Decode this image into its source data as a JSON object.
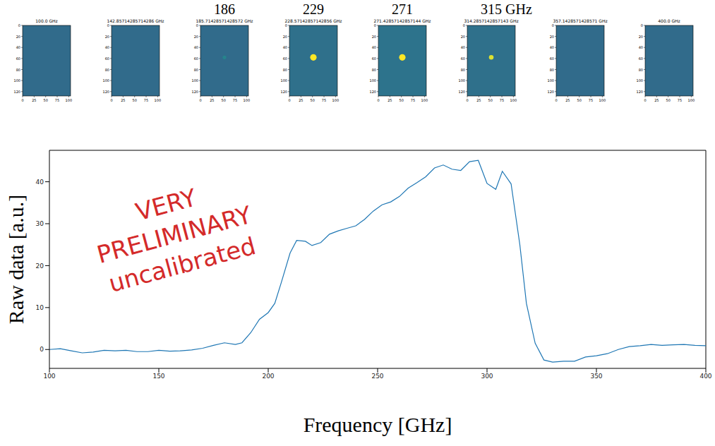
{
  "chart_data": [
    {
      "type": "image",
      "title": "100.0 GHz",
      "xlim": [
        0,
        104
      ],
      "ylim": [
        128,
        0
      ],
      "xticks": [
        0,
        25,
        50,
        75,
        100
      ],
      "yticks": [
        0,
        20,
        40,
        60,
        80,
        100,
        120
      ],
      "clim": [
        0,
        1
      ],
      "background": 0.35,
      "spot": null
    },
    {
      "type": "image",
      "title": "142.85714285714286 GHz",
      "xlim": [
        0,
        104
      ],
      "ylim": [
        128,
        0
      ],
      "xticks": [
        0,
        25,
        50,
        75,
        100
      ],
      "yticks": [
        0,
        20,
        40,
        60,
        80,
        100,
        120
      ],
      "clim": [
        0,
        1
      ],
      "background": 0.35,
      "spot": null
    },
    {
      "type": "image",
      "title": "185.71428571428572 GHz",
      "annotation": "186",
      "xlim": [
        0,
        104
      ],
      "ylim": [
        128,
        0
      ],
      "xticks": [
        0,
        25,
        50,
        75,
        100
      ],
      "yticks": [
        0,
        20,
        40,
        60,
        80,
        100,
        120
      ],
      "clim": [
        0,
        1
      ],
      "background": 0.35,
      "spot": {
        "x": 52,
        "y": 58,
        "size": 4,
        "value": 0.45
      }
    },
    {
      "type": "image",
      "title": "228.57142857142856 GHz",
      "annotation": "229",
      "xlim": [
        0,
        104
      ],
      "ylim": [
        128,
        0
      ],
      "xticks": [
        0,
        25,
        50,
        75,
        100
      ],
      "yticks": [
        0,
        20,
        40,
        60,
        80,
        100,
        120
      ],
      "clim": [
        0,
        1
      ],
      "background": 0.37,
      "spot": {
        "x": 52,
        "y": 58,
        "size": 7,
        "value": 1
      }
    },
    {
      "type": "image",
      "title": "271.42857142857144 GHz",
      "annotation": "271",
      "xlim": [
        0,
        104
      ],
      "ylim": [
        128,
        0
      ],
      "xticks": [
        0,
        25,
        50,
        75,
        100
      ],
      "yticks": [
        0,
        20,
        40,
        60,
        80,
        100,
        120
      ],
      "clim": [
        0,
        1
      ],
      "background": 0.38,
      "spot": {
        "x": 52,
        "y": 58,
        "size": 7,
        "value": 1
      }
    },
    {
      "type": "image",
      "title": "314.2857142857143 GHz",
      "annotation": "315 GHz",
      "xlim": [
        0,
        104
      ],
      "ylim": [
        128,
        0
      ],
      "xticks": [
        0,
        25,
        50,
        75,
        100
      ],
      "yticks": [
        0,
        20,
        40,
        60,
        80,
        100,
        120
      ],
      "clim": [
        0,
        1
      ],
      "background": 0.37,
      "spot": {
        "x": 52,
        "y": 58,
        "size": 5,
        "value": 0.95
      }
    },
    {
      "type": "image",
      "title": "357.1428571428571 GHz",
      "xlim": [
        0,
        104
      ],
      "ylim": [
        128,
        0
      ],
      "xticks": [
        0,
        25,
        50,
        75,
        100
      ],
      "yticks": [
        0,
        20,
        40,
        60,
        80,
        100,
        120
      ],
      "clim": [
        0,
        1
      ],
      "background": 0.35,
      "spot": null
    },
    {
      "type": "image",
      "title": "400.0 GHz",
      "xlim": [
        0,
        104
      ],
      "ylim": [
        128,
        0
      ],
      "xticks": [
        0,
        25,
        50,
        75,
        100
      ],
      "yticks": [
        0,
        20,
        40,
        60,
        80,
        100,
        120
      ],
      "clim": [
        0,
        1
      ],
      "background": 0.35,
      "spot": null
    },
    {
      "type": "line",
      "xlabel": "Frequency [GHz]",
      "ylabel": "Raw data [a.u.]",
      "color": "#1f77b4",
      "grid": false,
      "x": [
        100,
        105,
        110,
        115,
        120,
        125,
        130,
        135,
        140,
        145,
        150,
        155,
        160,
        165,
        170,
        175,
        180,
        185,
        188,
        192,
        196,
        200,
        203,
        206,
        210,
        213,
        217,
        220,
        224,
        228,
        232,
        236,
        240,
        244,
        248,
        252,
        256,
        260,
        264,
        268,
        272,
        276,
        280,
        284,
        288,
        292,
        296,
        300,
        304,
        307,
        311,
        315,
        318,
        322,
        326,
        330,
        335,
        340,
        345,
        350,
        355,
        360,
        365,
        370,
        375,
        380,
        385,
        390,
        395,
        400
      ],
      "values": [
        0,
        0.2,
        -0.3,
        -0.8,
        -0.6,
        -0.2,
        -0.3,
        -0.2,
        -0.5,
        -0.5,
        -0.2,
        -0.4,
        -0.3,
        -0.1,
        0.3,
        1.0,
        1.6,
        1.2,
        1.6,
        4,
        7.2,
        8.8,
        11,
        16,
        23,
        26,
        25.8,
        24.8,
        25.5,
        27.5,
        28.3,
        28.9,
        29.5,
        31,
        33,
        34.5,
        35.2,
        36.5,
        38.5,
        39.8,
        41.2,
        43.3,
        44,
        43,
        42.7,
        44.8,
        45.1,
        39.6,
        38.2,
        42.5,
        39.5,
        25,
        11,
        1.5,
        -2.5,
        -3,
        -2.8,
        -2.8,
        -1.8,
        -1.5,
        -1,
        0,
        0.7,
        0.9,
        1.2,
        1.0,
        1.1,
        1.2,
        1.0,
        0.9
      ],
      "xlim": [
        100,
        400
      ],
      "ylim": [
        -4.5,
        47.5
      ],
      "xticks": [
        100,
        150,
        200,
        250,
        300,
        350,
        400
      ],
      "yticks": [
        0,
        10,
        20,
        30,
        40
      ],
      "annotations": [
        {
          "text": "VERY",
          "color": "#d42a2a"
        },
        {
          "text": "PRELIMINARY",
          "color": "#d42a2a"
        },
        {
          "text": "uncalibrated",
          "color": "#d42a2a"
        }
      ]
    }
  ]
}
